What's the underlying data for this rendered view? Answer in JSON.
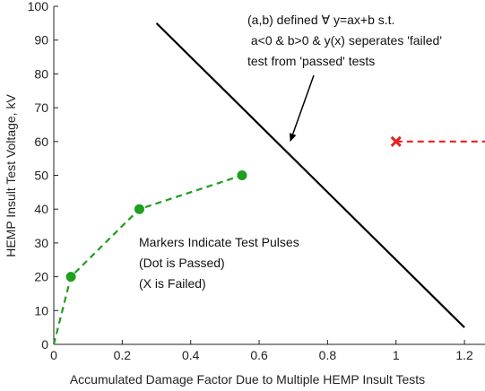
{
  "chart_data": {
    "type": "line",
    "xlabel": "Accumulated Damage Factor Due to Multiple HEMP Insult Tests",
    "ylabel": "HEMP Insult Test Voltage, kV",
    "xlim": [
      0,
      1.26
    ],
    "ylim": [
      0,
      100
    ],
    "xticks": [
      0,
      0.2,
      0.4,
      0.6,
      0.8,
      1,
      1.2
    ],
    "yticks": [
      0,
      10,
      20,
      30,
      40,
      50,
      60,
      70,
      80,
      90,
      100
    ],
    "series": [
      {
        "x": [
          0,
          0.05,
          0.25,
          0.55
        ],
        "values": [
          0,
          20,
          40,
          50
        ],
        "color": "#1f9e1f",
        "dash": true
      },
      {
        "x": [
          0.05,
          0.25,
          0.55
        ],
        "values": [
          20,
          40,
          50
        ],
        "color": "#1f9e1f",
        "marker": "o",
        "line": false
      },
      {
        "x": [
          1,
          1.26
        ],
        "values": [
          60,
          60
        ],
        "color": "#e8201f",
        "dash": true
      },
      {
        "x": [
          1
        ],
        "values": [
          60
        ],
        "color": "#e8201f",
        "marker": "x",
        "line": false
      },
      {
        "x": [
          0.3,
          1.2
        ],
        "values": [
          95,
          5
        ],
        "color": "#000000"
      }
    ],
    "annotations": [
      {
        "lines": [
          "(a,b) defined ∀ y=ax+b s.t.",
          " a<0 & b>0 & y(x) seperates 'failed'",
          "test from 'passed' tests"
        ]
      },
      {
        "lines": [
          "Markers Indicate Test Pulses",
          "(Dot is Passed)",
          "(X is Failed)"
        ]
      }
    ]
  }
}
